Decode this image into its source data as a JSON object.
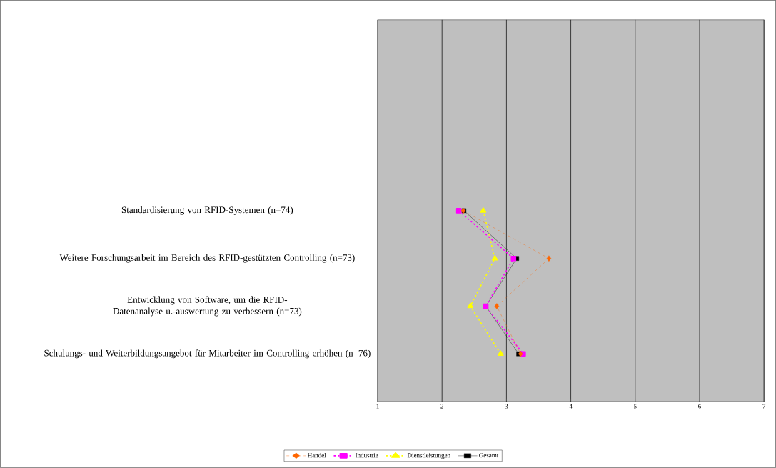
{
  "chart_data": {
    "type": "line",
    "orientation": "horizontal",
    "categories": [
      "Standardisierung von RFID-Systemen (n=74)",
      "Weitere Forschungsarbeit im Bereich des RFID-gestützten Controlling (n=73)",
      "Entwicklung von Software, um die RFID-Datenanalyse u.-auswertung zu verbessern (n=73)",
      "Schulungs- und Weiterbildungsangebot für Mitarbeiter im Controlling erhöhen (n=76)"
    ],
    "series": [
      {
        "name": "Handel",
        "color": "#ff6600",
        "marker": "diamond",
        "line_style": "dashed",
        "values": [
          2.33,
          3.66,
          2.85,
          3.22
        ]
      },
      {
        "name": "Industrie",
        "color": "#ff00ff",
        "marker": "square",
        "line_style": "dotted",
        "values": [
          2.26,
          3.11,
          2.68,
          3.26
        ]
      },
      {
        "name": "Dienstleistungen",
        "color": "#ffff00",
        "marker": "triangle",
        "line_style": "dotted",
        "values": [
          2.64,
          2.82,
          2.44,
          2.91
        ]
      },
      {
        "name": "Gesamt",
        "color": "#000000",
        "marker": "square",
        "line_style": "solid",
        "values": [
          2.34,
          3.16,
          2.68,
          3.19
        ]
      }
    ],
    "xlim": [
      1,
      7
    ],
    "xticks": [
      1,
      2,
      3,
      4,
      5,
      6,
      7
    ],
    "grid": "x",
    "legend": "bottom"
  }
}
